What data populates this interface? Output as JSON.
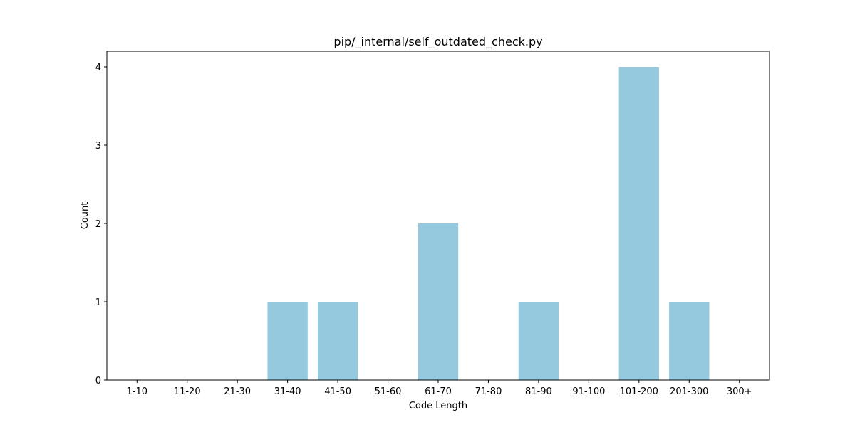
{
  "chart_data": {
    "type": "bar",
    "title": "pip/_internal/self_outdated_check.py",
    "xlabel": "Code Length",
    "ylabel": "Count",
    "categories": [
      "1-10",
      "11-20",
      "21-30",
      "31-40",
      "41-50",
      "51-60",
      "61-70",
      "71-80",
      "81-90",
      "91-100",
      "101-200",
      "201-300",
      "300+"
    ],
    "values": [
      0,
      0,
      0,
      1,
      1,
      0,
      2,
      0,
      1,
      0,
      4,
      1,
      0
    ],
    "ylim": [
      0,
      4.2
    ],
    "yticks": [
      0,
      1,
      2,
      3,
      4
    ],
    "bar_color": "#95c9dd",
    "grid": false,
    "legend": "none"
  }
}
